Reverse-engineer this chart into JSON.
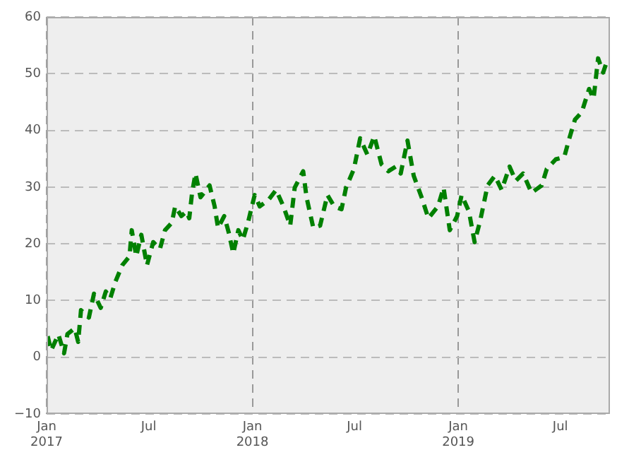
{
  "chart_data": {
    "type": "line",
    "line_style": "dashed",
    "marker": "none",
    "grid": true,
    "legend": false,
    "xlim": [
      "2017-01-01",
      "2019-09-27"
    ],
    "xticks": [
      {
        "value": "2017-01-01",
        "label": "Jan\n2017"
      },
      {
        "value": "2017-07-01",
        "label": "Jul"
      },
      {
        "value": "2018-01-01",
        "label": "Jan\n2018"
      },
      {
        "value": "2018-07-01",
        "label": "Jul"
      },
      {
        "value": "2019-01-01",
        "label": "Jan\n2019"
      },
      {
        "value": "2019-07-01",
        "label": "Jul"
      }
    ],
    "ylim": [
      -10,
      60
    ],
    "yticks": [
      {
        "value": -10,
        "label": "−10"
      },
      0,
      10,
      20,
      30,
      40,
      50,
      60
    ],
    "series": [
      {
        "color": "#008000",
        "x": [
          "2017-01-03",
          "2017-01-09",
          "2017-01-22",
          "2017-02-01",
          "2017-02-07",
          "2017-02-20",
          "2017-02-26",
          "2017-03-03",
          "2017-03-17",
          "2017-03-26",
          "2017-04-07",
          "2017-04-16",
          "2017-04-24",
          "2017-05-03",
          "2017-05-15",
          "2017-05-28",
          "2017-06-01",
          "2017-06-09",
          "2017-06-18",
          "2017-06-28",
          "2017-07-09",
          "2017-07-21",
          "2017-07-30",
          "2017-08-11",
          "2017-08-17",
          "2017-08-28",
          "2017-09-06",
          "2017-09-11",
          "2017-09-16",
          "2017-09-22",
          "2017-10-01",
          "2017-10-17",
          "2017-10-26",
          "2017-11-01",
          "2017-11-12",
          "2017-11-20",
          "2017-11-28",
          "2017-12-07",
          "2017-12-15",
          "2017-12-24",
          "2018-01-05",
          "2018-01-14",
          "2018-01-30",
          "2018-02-12",
          "2018-02-25",
          "2018-03-09",
          "2018-03-17",
          "2018-04-01",
          "2018-04-07",
          "2018-04-19",
          "2018-05-01",
          "2018-05-14",
          "2018-05-26",
          "2018-06-08",
          "2018-06-16",
          "2018-06-30",
          "2018-07-11",
          "2018-07-24",
          "2018-08-05",
          "2018-08-18",
          "2018-08-30",
          "2018-09-12",
          "2018-09-21",
          "2018-10-03",
          "2018-10-14",
          "2018-10-28",
          "2018-11-09",
          "2018-11-26",
          "2018-12-06",
          "2018-12-17",
          "2018-12-30",
          "2019-01-07",
          "2019-01-20",
          "2019-01-30",
          "2019-02-09",
          "2019-02-22",
          "2019-03-07",
          "2019-03-19",
          "2019-04-02",
          "2019-04-13",
          "2019-04-26",
          "2019-05-11",
          "2019-05-29",
          "2019-06-07",
          "2019-06-23",
          "2019-07-08",
          "2019-07-17",
          "2019-07-27",
          "2019-08-08",
          "2019-08-21",
          "2019-08-29",
          "2019-09-06",
          "2019-09-15",
          "2019-09-22"
        ],
        "values": [
          3.7,
          1.2,
          4,
          0.7,
          4.1,
          5.1,
          2.7,
          8.3,
          7,
          11.2,
          8.7,
          11.6,
          10.4,
          13.3,
          16.2,
          17.8,
          22.4,
          17.8,
          21.6,
          16.2,
          20.3,
          19.1,
          22.4,
          23.7,
          26.6,
          24.9,
          25.7,
          24.5,
          29,
          32.4,
          28.2,
          30.3,
          26.6,
          22.8,
          24.9,
          22,
          18.3,
          22.4,
          20.7,
          23.7,
          28.6,
          26.6,
          27.8,
          29.5,
          26.6,
          23.2,
          29.9,
          32.8,
          28.2,
          22.8,
          23.2,
          28.6,
          26.6,
          26.1,
          29.9,
          33.2,
          38.6,
          35.7,
          39,
          34,
          32.8,
          33.6,
          32.4,
          38.2,
          32,
          28.2,
          24.5,
          26.6,
          29.9,
          22.4,
          24.9,
          28.6,
          25.7,
          20.3,
          24.1,
          30.3,
          32,
          29.5,
          33.6,
          31.1,
          32.4,
          29,
          30.3,
          33.2,
          34.9,
          35.3,
          38.6,
          41.9,
          43.2,
          47.3,
          45.6,
          52.7,
          50.2,
          52.3
        ]
      }
    ]
  }
}
